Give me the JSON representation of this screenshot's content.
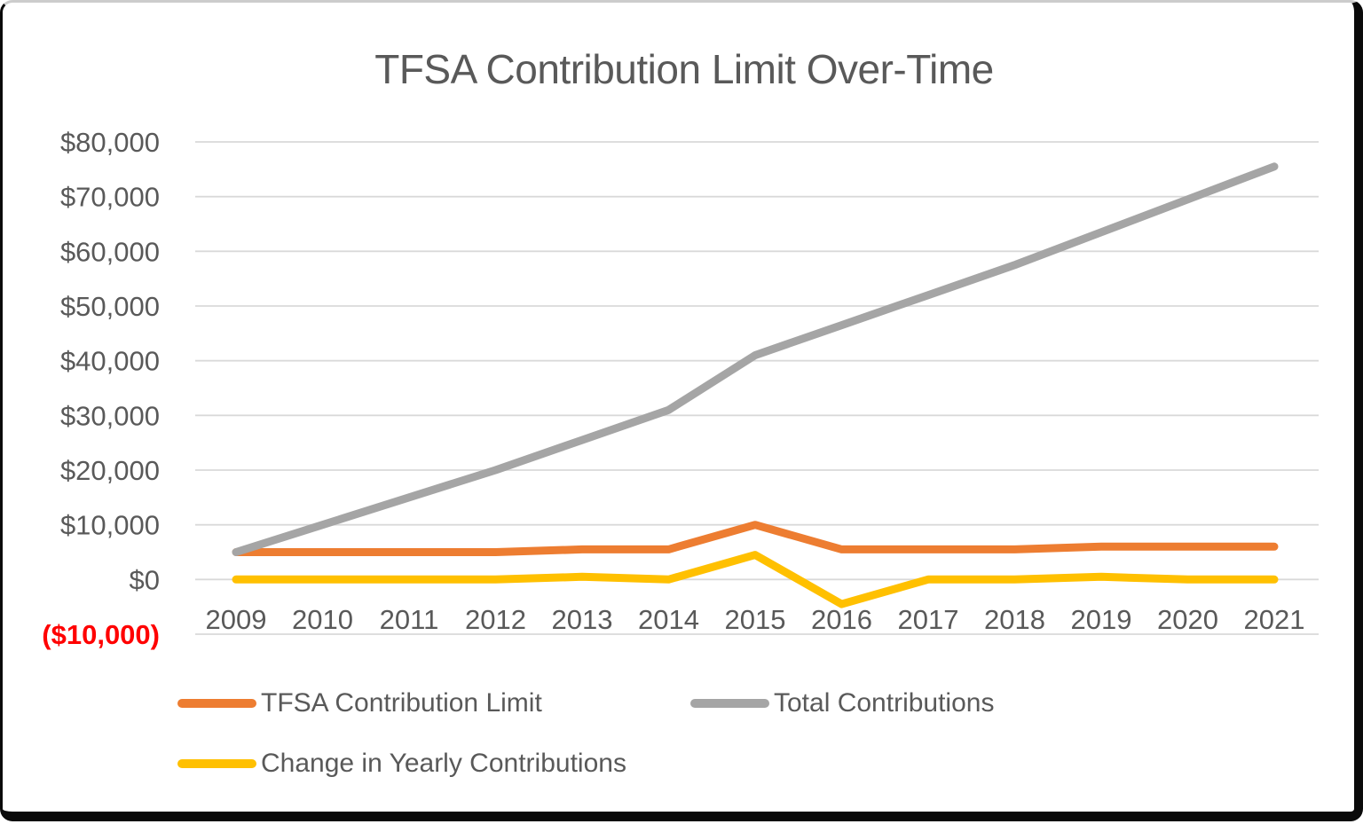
{
  "chart_data": {
    "type": "line",
    "title": "TFSA Contribution Limit Over-Time",
    "x": [
      "2009",
      "2010",
      "2011",
      "2012",
      "2013",
      "2014",
      "2015",
      "2016",
      "2017",
      "2018",
      "2019",
      "2020",
      "2021"
    ],
    "series": [
      {
        "name": "TFSA Contribution Limit",
        "color": "#ED7D31",
        "values": [
          5000,
          5000,
          5000,
          5000,
          5500,
          5500,
          10000,
          5500,
          5500,
          5500,
          6000,
          6000,
          6000
        ]
      },
      {
        "name": "Total Contributions",
        "color": "#A5A5A5",
        "values": [
          5000,
          10000,
          15000,
          20000,
          25500,
          31000,
          41000,
          46500,
          52000,
          57500,
          63500,
          69500,
          75500
        ]
      },
      {
        "name": "Change in Yearly Contributions",
        "color": "#FFC000",
        "values": [
          0,
          0,
          0,
          0,
          500,
          0,
          4500,
          -4500,
          0,
          0,
          500,
          0,
          0
        ]
      }
    ],
    "xlabel": "",
    "ylabel": "",
    "ylim": [
      -10000,
      80000
    ],
    "grid": true,
    "legend_position": "bottom",
    "y_ticks": [
      {
        "value": 80000,
        "label": "$80,000"
      },
      {
        "value": 70000,
        "label": "$70,000"
      },
      {
        "value": 60000,
        "label": "$60,000"
      },
      {
        "value": 50000,
        "label": "$50,000"
      },
      {
        "value": 40000,
        "label": "$40,000"
      },
      {
        "value": 30000,
        "label": "$30,000"
      },
      {
        "value": 20000,
        "label": "$20,000"
      },
      {
        "value": 10000,
        "label": "$10,000"
      },
      {
        "value": 0,
        "label": "$0"
      },
      {
        "value": -10000,
        "label": "($10,000)",
        "color": "#FF0000"
      }
    ],
    "colors": {
      "axis_text": "#595959",
      "gridline": "#D9D9D9",
      "negative_label": "#FF0000"
    }
  }
}
